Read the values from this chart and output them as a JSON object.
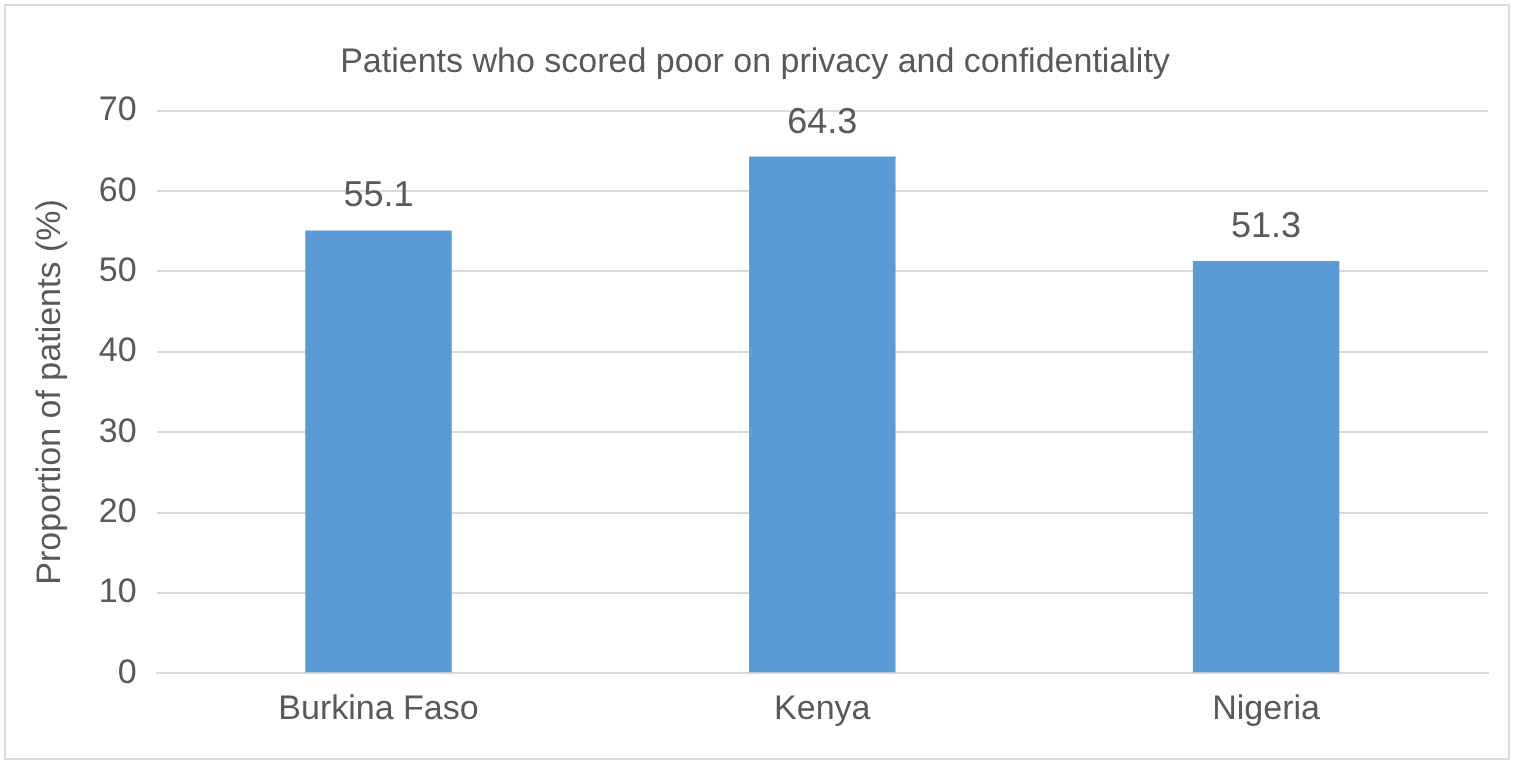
{
  "chart_data": {
    "type": "bar",
    "title": "Patients who scored poor on privacy and confidentiality",
    "ylabel": "Proportion of patients (%)",
    "categories": [
      "Burkina Faso",
      "Kenya",
      "Nigeria"
    ],
    "values": [
      55.1,
      64.3,
      51.3
    ],
    "color": "#5b9bd5",
    "ylim": [
      0,
      70
    ],
    "yticks": [
      0,
      10,
      20,
      30,
      40,
      50,
      60,
      70
    ],
    "grid": "y",
    "data_labels": true,
    "legend": false
  }
}
